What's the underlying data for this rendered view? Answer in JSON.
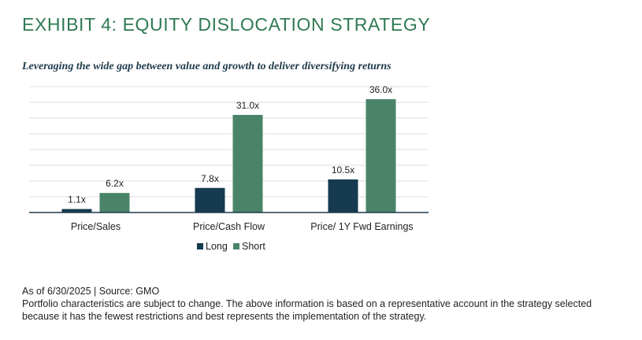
{
  "title": "EXHIBIT 4: EQUITY DISLOCATION STRATEGY",
  "subtitle": "Leveraging the wide gap between value and growth to deliver diversifying returns",
  "colors": {
    "long": "#163a4f",
    "short": "#4a8468",
    "title": "#2f7a52",
    "grid": "#dcdcdc",
    "axis": "#1f3a4b"
  },
  "chart_data": {
    "type": "bar",
    "categories": [
      "Price/Sales",
      "Price/Cash Flow",
      "Price/ 1Y Fwd Earnings"
    ],
    "series": [
      {
        "name": "Long",
        "values": [
          1.1,
          7.8,
          10.5
        ],
        "labels": [
          "1.1x",
          "7.8x",
          "10.5x"
        ]
      },
      {
        "name": "Short",
        "values": [
          6.2,
          31.0,
          36.0
        ],
        "labels": [
          "6.2x",
          "31.0x",
          "36.0x"
        ]
      }
    ],
    "ylim": [
      0,
      40
    ],
    "grid": true,
    "legend_position": "bottom-center"
  },
  "footer": {
    "source": "As of 6/30/2025 | Source: GMO",
    "note_line1": "Portfolio characteristics are subject to change. The above information is based on a representative account in the strategy selected",
    "note_line2": "because it has the fewest restrictions and best represents the implementation of the strategy."
  }
}
